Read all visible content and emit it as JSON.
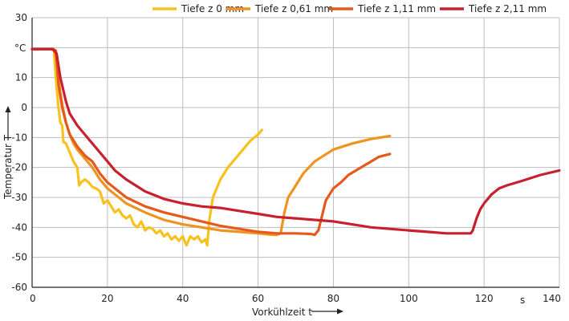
{
  "chart_data": {
    "type": "line",
    "xlabel": "Vorkühlzeit t",
    "ylabel": "Temperatur T",
    "x_unit": "s",
    "y_unit": "°C",
    "xlim": [
      0,
      140
    ],
    "ylim": [
      -60,
      30
    ],
    "x_ticks": [
      0,
      20,
      40,
      60,
      80,
      100,
      120,
      140
    ],
    "y_ticks": [
      30,
      20,
      10,
      0,
      -10,
      -20,
      -30,
      -40,
      -50,
      -60
    ],
    "grid": true,
    "legend_position": "top",
    "series": [
      {
        "name": "Tiefe z 0 mm",
        "color": "#f7c21f",
        "points": [
          [
            0,
            19.5
          ],
          [
            5,
            19.5
          ],
          [
            5.8,
            19
          ],
          [
            6.3,
            10
          ],
          [
            7,
            0
          ],
          [
            7.5,
            -5
          ],
          [
            8,
            -6
          ],
          [
            8.3,
            -11.5
          ],
          [
            9,
            -12
          ],
          [
            10,
            -15
          ],
          [
            11,
            -18
          ],
          [
            12,
            -20
          ],
          [
            12.5,
            -26
          ],
          [
            13,
            -25
          ],
          [
            14,
            -24
          ],
          [
            15,
            -25
          ],
          [
            16,
            -26.5
          ],
          [
            17,
            -27
          ],
          [
            18,
            -28
          ],
          [
            19,
            -32
          ],
          [
            20,
            -31
          ],
          [
            21,
            -33
          ],
          [
            22,
            -35
          ],
          [
            23,
            -34
          ],
          [
            24,
            -36
          ],
          [
            25,
            -37
          ],
          [
            26,
            -36
          ],
          [
            27,
            -39
          ],
          [
            28,
            -40
          ],
          [
            29,
            -38
          ],
          [
            30,
            -41
          ],
          [
            31,
            -40
          ],
          [
            32,
            -40.5
          ],
          [
            33,
            -42
          ],
          [
            34,
            -41
          ],
          [
            35,
            -43
          ],
          [
            36,
            -42
          ],
          [
            37,
            -44
          ],
          [
            38,
            -43
          ],
          [
            39,
            -44.5
          ],
          [
            40,
            -43
          ],
          [
            41,
            -46
          ],
          [
            42,
            -43
          ],
          [
            43,
            -44
          ],
          [
            44,
            -43
          ],
          [
            45,
            -45
          ],
          [
            46,
            -44
          ],
          [
            46.5,
            -46
          ],
          [
            47,
            -38
          ],
          [
            48,
            -30
          ],
          [
            50,
            -24
          ],
          [
            52,
            -20
          ],
          [
            54,
            -17
          ],
          [
            56,
            -14
          ],
          [
            58,
            -11
          ],
          [
            60,
            -9
          ],
          [
            61,
            -7.5
          ]
        ]
      },
      {
        "name": "Tiefe z 0,61 mm",
        "color": "#ef9421",
        "points": [
          [
            0,
            19.5
          ],
          [
            5.5,
            19.5
          ],
          [
            6.2,
            19
          ],
          [
            7,
            9
          ],
          [
            8,
            1
          ],
          [
            9,
            -5
          ],
          [
            10,
            -9
          ],
          [
            11,
            -12
          ],
          [
            12,
            -14
          ],
          [
            14,
            -17
          ],
          [
            16,
            -20
          ],
          [
            18,
            -24
          ],
          [
            20,
            -27
          ],
          [
            25,
            -32
          ],
          [
            30,
            -35
          ],
          [
            35,
            -37.5
          ],
          [
            40,
            -39
          ],
          [
            45,
            -40
          ],
          [
            50,
            -41
          ],
          [
            55,
            -41.5
          ],
          [
            60,
            -42
          ],
          [
            64,
            -42.5
          ],
          [
            65,
            -42.5
          ],
          [
            66,
            -42
          ],
          [
            67,
            -35
          ],
          [
            68,
            -30
          ],
          [
            70,
            -26
          ],
          [
            72,
            -22
          ],
          [
            75,
            -18
          ],
          [
            80,
            -14
          ],
          [
            85,
            -12
          ],
          [
            90,
            -10.5
          ],
          [
            95,
            -9.5
          ]
        ]
      },
      {
        "name": "Tiefe z 1,11 mm",
        "color": "#e55a1c",
        "points": [
          [
            0,
            19.5
          ],
          [
            5.5,
            19.5
          ],
          [
            6.3,
            19
          ],
          [
            7,
            8
          ],
          [
            8,
            0
          ],
          [
            9,
            -5
          ],
          [
            10,
            -9
          ],
          [
            12,
            -13
          ],
          [
            14,
            -16
          ],
          [
            16,
            -18
          ],
          [
            18,
            -22
          ],
          [
            20,
            -25
          ],
          [
            25,
            -30
          ],
          [
            30,
            -33
          ],
          [
            35,
            -35
          ],
          [
            40,
            -36.5
          ],
          [
            45,
            -38
          ],
          [
            50,
            -39.5
          ],
          [
            55,
            -40.5
          ],
          [
            60,
            -41.5
          ],
          [
            65,
            -42
          ],
          [
            70,
            -42
          ],
          [
            74,
            -42.2
          ],
          [
            75,
            -42.5
          ],
          [
            76,
            -41
          ],
          [
            77,
            -36
          ],
          [
            78,
            -31
          ],
          [
            80,
            -27
          ],
          [
            82,
            -25
          ],
          [
            84,
            -22.5
          ],
          [
            86,
            -21
          ],
          [
            88,
            -19.5
          ],
          [
            90,
            -18
          ],
          [
            92,
            -16.5
          ],
          [
            95,
            -15.5
          ]
        ]
      },
      {
        "name": "Tiefe z 2,11 mm",
        "color": "#c8202e",
        "points": [
          [
            0,
            19.5
          ],
          [
            5.5,
            19.5
          ],
          [
            6.5,
            18
          ],
          [
            7.5,
            10
          ],
          [
            9,
            2
          ],
          [
            10,
            -2
          ],
          [
            12,
            -6
          ],
          [
            14,
            -9
          ],
          [
            16,
            -12
          ],
          [
            18,
            -15
          ],
          [
            20,
            -18
          ],
          [
            22,
            -21
          ],
          [
            25,
            -24
          ],
          [
            30,
            -28
          ],
          [
            35,
            -30.5
          ],
          [
            40,
            -32
          ],
          [
            45,
            -33
          ],
          [
            50,
            -33.5
          ],
          [
            55,
            -34.5
          ],
          [
            60,
            -35.5
          ],
          [
            65,
            -36.5
          ],
          [
            70,
            -37
          ],
          [
            75,
            -37.5
          ],
          [
            80,
            -38
          ],
          [
            85,
            -39
          ],
          [
            90,
            -40
          ],
          [
            95,
            -40.5
          ],
          [
            100,
            -41
          ],
          [
            105,
            -41.5
          ],
          [
            110,
            -42
          ],
          [
            115,
            -42
          ],
          [
            116.5,
            -42
          ],
          [
            117,
            -41
          ],
          [
            118,
            -37
          ],
          [
            119,
            -34
          ],
          [
            120,
            -32
          ],
          [
            122,
            -29
          ],
          [
            124,
            -27
          ],
          [
            126,
            -26
          ],
          [
            130,
            -24.5
          ],
          [
            135,
            -22.5
          ],
          [
            140,
            -21
          ]
        ]
      }
    ]
  }
}
